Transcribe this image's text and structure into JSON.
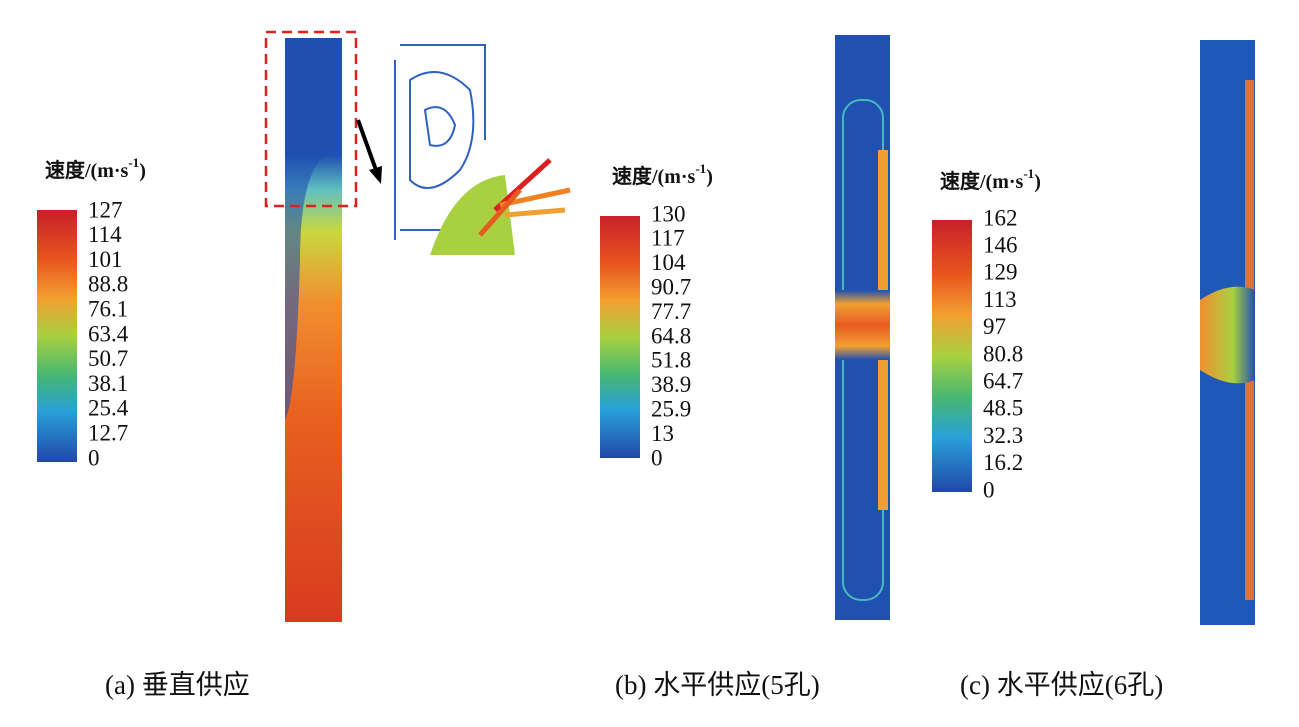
{
  "panels": [
    {
      "legend_title": {
        "text": "速度/(m·s",
        "sup": "-1",
        "close": ")"
      },
      "ticks": [
        "127",
        "114",
        "101",
        "88.8",
        "76.1",
        "63.4",
        "50.7",
        "38.1",
        "25.4",
        "12.7",
        "0"
      ],
      "caption": "(a) 垂直供应"
    },
    {
      "legend_title": {
        "text": "速度/(m·s",
        "sup": "-1",
        "close": ")"
      },
      "ticks": [
        "130",
        "117",
        "104",
        "90.7",
        "77.7",
        "64.8",
        "51.8",
        "38.9",
        "25.9",
        "13",
        "0"
      ],
      "caption": "(b) 水平供应(5孔)"
    },
    {
      "legend_title": {
        "text": "速度/(m·s",
        "sup": "-1",
        "close": ")"
      },
      "ticks": [
        "162",
        "146",
        "129",
        "113",
        "97",
        "80.8",
        "64.7",
        "48.5",
        "32.3",
        "16.2",
        "0"
      ],
      "caption": "(c) 水平供应(6孔)"
    }
  ]
}
